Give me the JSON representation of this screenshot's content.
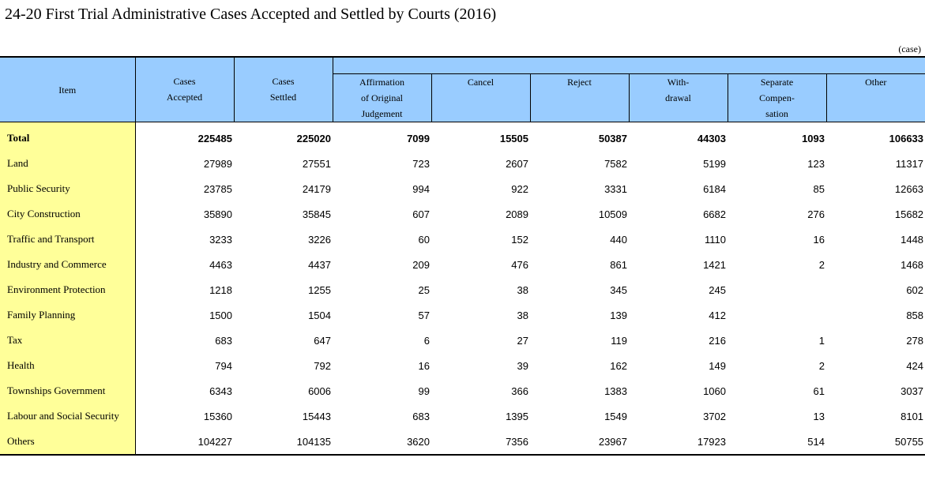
{
  "title": "24-20  First Trial Administrative Cases Accepted and Settled by Courts (2016)",
  "unit": "(case)",
  "header": {
    "item": "Item",
    "accepted": [
      "Cases",
      "Accepted"
    ],
    "settled": [
      "Cases",
      "Settled"
    ],
    "affirmation": [
      "Affirmation",
      "of Original",
      "Judgement"
    ],
    "cancel": "Cancel",
    "reject": "Reject",
    "withdrawal": [
      "With-",
      "drawal"
    ],
    "separate": [
      "Separate",
      "Compen-",
      "sation"
    ],
    "other": "Other"
  },
  "rows": [
    {
      "item": "Total",
      "accepted": "225485",
      "settled": "225020",
      "affirmation": "7099",
      "cancel": "15505",
      "reject": "50387",
      "withdrawal": "44303",
      "separate": "1093",
      "other": "106633"
    },
    {
      "item": "Land",
      "accepted": "27989",
      "settled": "27551",
      "affirmation": "723",
      "cancel": "2607",
      "reject": "7582",
      "withdrawal": "5199",
      "separate": "123",
      "other": "11317"
    },
    {
      "item": "Public Security",
      "accepted": "23785",
      "settled": "24179",
      "affirmation": "994",
      "cancel": "922",
      "reject": "3331",
      "withdrawal": "6184",
      "separate": "85",
      "other": "12663"
    },
    {
      "item": "City Construction",
      "accepted": "35890",
      "settled": "35845",
      "affirmation": "607",
      "cancel": "2089",
      "reject": "10509",
      "withdrawal": "6682",
      "separate": "276",
      "other": "15682"
    },
    {
      "item": "Traffic and Transport",
      "accepted": "3233",
      "settled": "3226",
      "affirmation": "60",
      "cancel": "152",
      "reject": "440",
      "withdrawal": "1110",
      "separate": "16",
      "other": "1448"
    },
    {
      "item": "Industry and Commerce",
      "accepted": "4463",
      "settled": "4437",
      "affirmation": "209",
      "cancel": "476",
      "reject": "861",
      "withdrawal": "1421",
      "separate": "2",
      "other": "1468"
    },
    {
      "item": "Environment Protection",
      "accepted": "1218",
      "settled": "1255",
      "affirmation": "25",
      "cancel": "38",
      "reject": "345",
      "withdrawal": "245",
      "separate": "",
      "other": "602"
    },
    {
      "item": "Family Planning",
      "accepted": "1500",
      "settled": "1504",
      "affirmation": "57",
      "cancel": "38",
      "reject": "139",
      "withdrawal": "412",
      "separate": "",
      "other": "858"
    },
    {
      "item": "Tax",
      "accepted": "683",
      "settled": "647",
      "affirmation": "6",
      "cancel": "27",
      "reject": "119",
      "withdrawal": "216",
      "separate": "1",
      "other": "278"
    },
    {
      "item": "Health",
      "accepted": "794",
      "settled": "792",
      "affirmation": "16",
      "cancel": "39",
      "reject": "162",
      "withdrawal": "149",
      "separate": "2",
      "other": "424"
    },
    {
      "item": "Townships Government",
      "accepted": "6343",
      "settled": "6006",
      "affirmation": "99",
      "cancel": "366",
      "reject": "1383",
      "withdrawal": "1060",
      "separate": "61",
      "other": "3037"
    },
    {
      "item": "Labour and Social Security",
      "accepted": "15360",
      "settled": "15443",
      "affirmation": "683",
      "cancel": "1395",
      "reject": "1549",
      "withdrawal": "3702",
      "separate": "13",
      "other": "8101"
    },
    {
      "item": "Others",
      "accepted": "104227",
      "settled": "104135",
      "affirmation": "3620",
      "cancel": "7356",
      "reject": "23967",
      "withdrawal": "17923",
      "separate": "514",
      "other": "50755"
    }
  ]
}
